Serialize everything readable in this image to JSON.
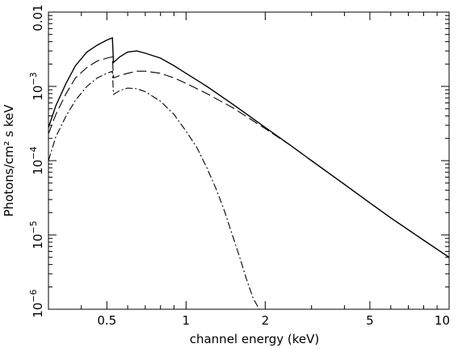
{
  "chart_data": {
    "type": "line",
    "x_scale": "log",
    "y_scale": "log",
    "xlim": [
      0.3,
      10
    ],
    "ylim": [
      1e-06,
      0.01
    ],
    "xlabel": "channel energy (keV)",
    "ylabel": "Photons/cm² s keV",
    "grid": false,
    "x_tick_labels": [
      {
        "value": 0.5,
        "label": "0.5"
      },
      {
        "value": 1,
        "label": "1"
      },
      {
        "value": 2,
        "label": "2"
      },
      {
        "value": 5,
        "label": "5"
      },
      {
        "value": 10,
        "label": "10"
      }
    ],
    "y_tick_labels": [
      {
        "value": 0.01,
        "base": "0.01",
        "exp": ""
      },
      {
        "value": 0.001,
        "base": "10",
        "exp": "−3"
      },
      {
        "value": 0.0001,
        "base": "10",
        "exp": "−4"
      },
      {
        "value": 1e-05,
        "base": "10",
        "exp": "−5"
      },
      {
        "value": 1e-06,
        "base": "10",
        "exp": "−6"
      }
    ],
    "series": [
      {
        "style": "solid",
        "x": [
          0.3,
          0.32,
          0.35,
          0.38,
          0.42,
          0.46,
          0.5,
          0.525,
          0.53,
          0.56,
          0.6,
          0.65,
          0.7,
          0.8,
          0.9,
          1.0,
          1.2,
          1.5,
          2.0,
          2.5,
          3.0,
          4.0,
          5.0,
          6.0,
          8.0,
          10.0
        ],
        "y": [
          0.00028,
          0.00055,
          0.0011,
          0.0019,
          0.0029,
          0.0036,
          0.0042,
          0.0045,
          0.0021,
          0.0025,
          0.0029,
          0.003,
          0.0028,
          0.0024,
          0.0019,
          0.0015,
          0.001,
          0.00058,
          0.00028,
          0.00016,
          0.0001,
          4.8e-05,
          2.7e-05,
          1.7e-05,
          8.5e-06,
          5e-06
        ]
      },
      {
        "style": "dashed",
        "x": [
          0.3,
          0.32,
          0.35,
          0.38,
          0.42,
          0.46,
          0.5,
          0.525,
          0.53,
          0.56,
          0.6,
          0.65,
          0.7,
          0.8,
          0.9,
          1.0,
          1.2,
          1.5,
          2.0,
          2.5,
          3.0,
          4.0,
          5.0,
          6.0,
          8.0,
          10.0
        ],
        "y": [
          0.00023,
          0.00042,
          0.0008,
          0.0013,
          0.0018,
          0.0022,
          0.0024,
          0.0025,
          0.0013,
          0.0014,
          0.0015,
          0.0016,
          0.0016,
          0.0015,
          0.0013,
          0.0011,
          0.0008,
          0.00052,
          0.00027,
          0.00016,
          0.0001,
          4.8e-05,
          2.7e-05,
          1.7e-05,
          8.5e-06,
          5e-06
        ]
      },
      {
        "style": "dash-dot",
        "x": [
          0.3,
          0.32,
          0.35,
          0.38,
          0.42,
          0.46,
          0.5,
          0.525,
          0.53,
          0.56,
          0.6,
          0.65,
          0.7,
          0.8,
          0.9,
          1.0,
          1.1,
          1.2,
          1.3,
          1.4,
          1.5,
          1.6,
          1.7,
          1.8,
          1.9
        ],
        "y": [
          0.0001,
          0.00021,
          0.0004,
          0.00065,
          0.001,
          0.0013,
          0.0015,
          0.0016,
          0.00078,
          0.00088,
          0.00095,
          0.00093,
          0.00085,
          0.00063,
          0.00042,
          0.00025,
          0.00015,
          8e-05,
          4.2e-05,
          2.1e-05,
          1e-05,
          5e-06,
          2.5e-06,
          1.4e-06,
          1e-06
        ]
      }
    ]
  }
}
